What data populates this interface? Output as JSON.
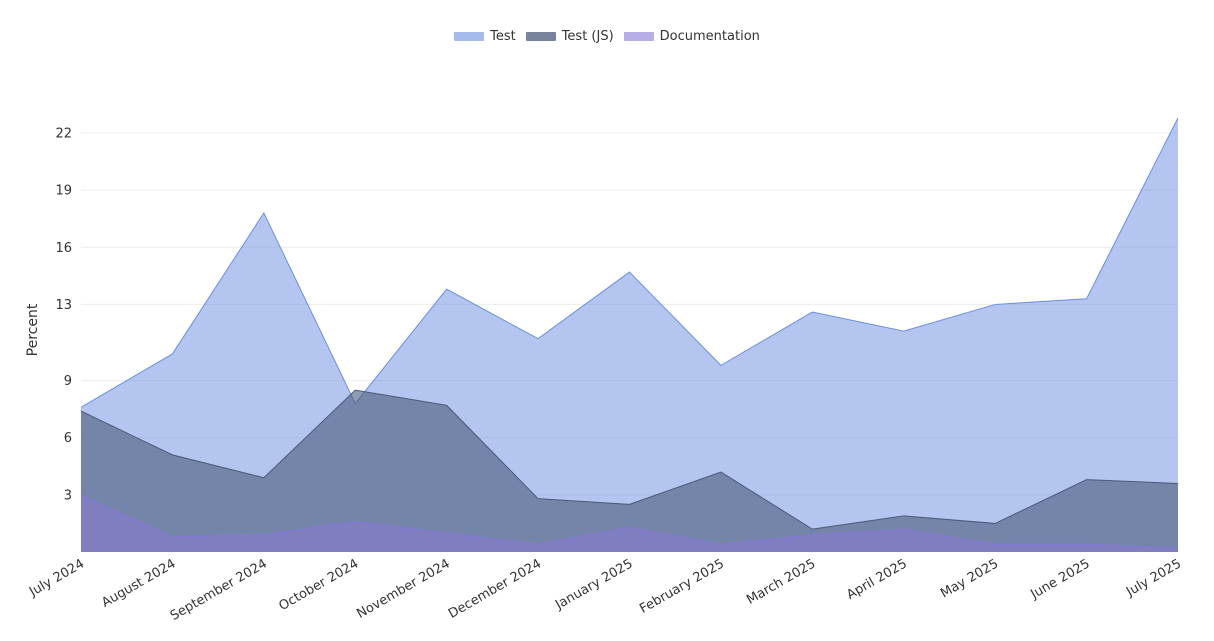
{
  "chart_data": {
    "type": "area",
    "title": "",
    "xlabel": "",
    "ylabel": "Percent",
    "x": [
      "July 2024",
      "August 2024",
      "September 2024",
      "October 2024",
      "November 2024",
      "December 2024",
      "January 2025",
      "February 2025",
      "March 2025",
      "April 2025",
      "May 2025",
      "June 2025",
      "July 2025"
    ],
    "yticks": [
      3,
      6,
      9,
      13,
      16,
      19,
      22
    ],
    "ylim": [
      0,
      23
    ],
    "grid": true,
    "legend_position": "top-center",
    "stacked": false,
    "series": [
      {
        "name": "Test",
        "color": "#6a8ee0",
        "values": [
          7.6,
          10.4,
          17.8,
          7.8,
          13.8,
          11.2,
          14.7,
          9.8,
          12.6,
          11.6,
          13.0,
          13.3,
          22.8
        ]
      },
      {
        "name": "Test (JS)",
        "color": "#4a5a7a",
        "values": [
          7.4,
          5.1,
          3.9,
          8.5,
          7.7,
          2.8,
          2.5,
          4.2,
          1.2,
          1.9,
          1.5,
          3.8,
          3.6
        ]
      },
      {
        "name": "Documentation",
        "color": "#8878d8",
        "values": [
          3.0,
          0.8,
          0.9,
          1.6,
          1.0,
          0.4,
          1.3,
          0.4,
          0.9,
          1.2,
          0.4,
          0.4,
          0.2
        ]
      }
    ]
  }
}
